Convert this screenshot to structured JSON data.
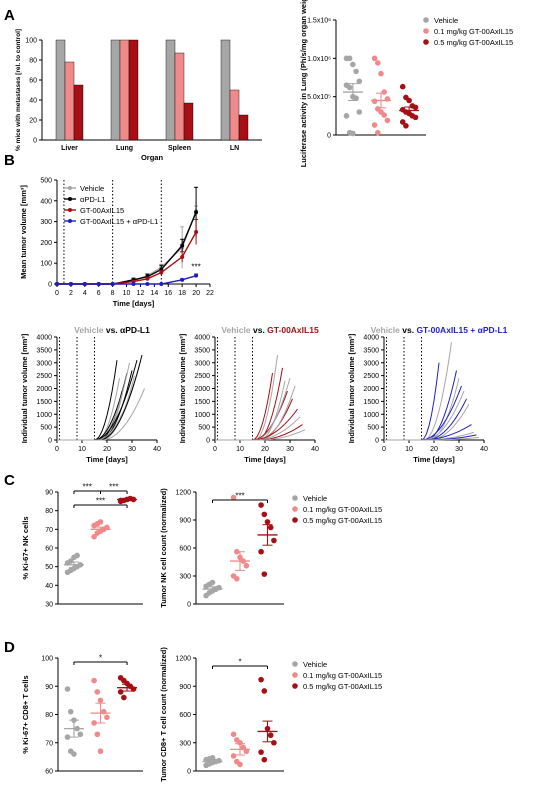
{
  "panels": {
    "A": "A",
    "B": "B",
    "C": "C",
    "D": "D"
  },
  "colors": {
    "vehicle": "#a6a6a6",
    "low": "#f08a8a",
    "high": "#a50f15",
    "black": "#000000",
    "combo": "#1f1fbf",
    "trace": "#1f1fbf"
  },
  "chart_data": [
    {
      "id": "A-bar",
      "type": "bar",
      "ylabel": "% mice with metastases [rel. to control]",
      "xlabel": "Organ",
      "categories": [
        "Liver",
        "Lung",
        "Spleen",
        "LN"
      ],
      "ylim": [
        0,
        100
      ],
      "yticks": [
        0,
        20,
        40,
        60,
        80,
        100
      ],
      "series": [
        {
          "name": "Vehicle",
          "values": [
            100,
            100,
            100,
            100
          ]
        },
        {
          "name": "0.1 mg/kg GT-00AxIL15",
          "values": [
            78,
            100,
            87,
            50
          ]
        },
        {
          "name": "0.5 mg/kg GT-00AxIL15",
          "values": [
            55,
            100,
            37,
            25
          ]
        }
      ]
    },
    {
      "id": "A-scatter",
      "type": "scatter",
      "ylabel": "Luciferase activity in Lung (Ph/s/mg organ weight)",
      "ylim": [
        0,
        1500000
      ],
      "yticks": [
        "0",
        "5.0x10⁵",
        "1.0x10⁶",
        "1.5x10⁶"
      ],
      "legend": [
        "Vehicle",
        "0.1 mg/kg GT-00AxIL15",
        "0.5 mg/kg GT-00AxIL15"
      ],
      "groups": [
        {
          "name": "Vehicle",
          "mean": 560000,
          "sem": 110000,
          "values": [
            1000000,
            1000000,
            920000,
            830000,
            700000,
            650000,
            620000,
            500000,
            480000,
            300000,
            250000,
            30000,
            20000
          ]
        },
        {
          "name": "0.1 mg/kg GT-00AxIL15",
          "mean": 450000,
          "sem": 95000,
          "values": [
            1000000,
            940000,
            800000,
            560000,
            470000,
            440000,
            340000,
            300000,
            260000,
            190000,
            130000,
            30000
          ]
        },
        {
          "name": "0.5 mg/kg GT-00AxIL15",
          "mean": 320000,
          "sem": 45000,
          "values": [
            630000,
            490000,
            450000,
            380000,
            360000,
            330000,
            300000,
            280000,
            250000,
            230000,
            170000,
            120000
          ]
        }
      ]
    },
    {
      "id": "B-mean",
      "type": "line",
      "ylabel": "Mean tumor volume [mm³]",
      "xlabel": "Time [days]",
      "xlim": [
        0,
        22
      ],
      "xticks": [
        0,
        2,
        4,
        6,
        8,
        10,
        12,
        14,
        16,
        18,
        20,
        22
      ],
      "ylim": [
        0,
        500
      ],
      "yticks": [
        0,
        100,
        200,
        300,
        400,
        500
      ],
      "dosing_days": [
        1,
        8,
        15
      ],
      "annotation": "***",
      "series": [
        {
          "name": "Vehicle",
          "x": [
            0,
            2,
            4,
            6,
            8,
            11,
            13,
            15,
            18,
            20
          ],
          "y": [
            0,
            0,
            0,
            0,
            0,
            15,
            40,
            80,
            175,
            350
          ],
          "err": [
            0,
            0,
            0,
            0,
            0,
            5,
            10,
            15,
            100,
            25
          ]
        },
        {
          "name": "αPD-L1",
          "x": [
            0,
            2,
            4,
            6,
            8,
            11,
            13,
            15,
            18,
            20
          ],
          "y": [
            0,
            0,
            0,
            0,
            0,
            20,
            35,
            70,
            185,
            345
          ],
          "err": [
            0,
            0,
            0,
            0,
            0,
            8,
            12,
            20,
            30,
            120
          ]
        },
        {
          "name": "GT-00AxIL15",
          "x": [
            0,
            2,
            4,
            6,
            8,
            11,
            13,
            15,
            18,
            20
          ],
          "y": [
            0,
            0,
            0,
            0,
            0,
            12,
            25,
            55,
            130,
            250
          ],
          "err": [
            0,
            0,
            0,
            0,
            0,
            4,
            8,
            10,
            25,
            60
          ]
        },
        {
          "name": "GT-00AxIL15 + αPD-L1",
          "x": [
            0,
            2,
            4,
            6,
            8,
            11,
            13,
            15,
            18,
            20
          ],
          "y": [
            0,
            0,
            0,
            0,
            0,
            0,
            0,
            0,
            20,
            40
          ],
          "err": [
            0,
            0,
            0,
            0,
            0,
            0,
            0,
            0,
            5,
            8
          ]
        }
      ]
    },
    {
      "id": "B-indiv",
      "type": "line",
      "ylabel": "Individual tumor volume [mm³]",
      "xlabel": "Time [days]",
      "xlim": [
        0,
        40
      ],
      "xticks": [
        0,
        10,
        20,
        30,
        40
      ],
      "ylim": [
        0,
        4000
      ],
      "yticks": [
        0,
        500,
        1000,
        1500,
        2000,
        2500,
        3000,
        3500,
        4000
      ],
      "dosing_days": [
        1,
        8,
        15
      ],
      "panels": [
        {
          "title_a": "Vehicle",
          "title_vs": " vs. ",
          "title_b": "αPD-L1",
          "treat_color": "black",
          "ends": [
            [
              24,
              3100
            ],
            [
              25,
              2400
            ],
            [
              26,
              1900
            ],
            [
              27,
              2200
            ],
            [
              28,
              2600
            ],
            [
              29,
              3000
            ],
            [
              30,
              2700
            ],
            [
              31,
              2500
            ],
            [
              32,
              3100
            ],
            [
              33,
              2900
            ],
            [
              34,
              3300
            ],
            [
              35,
              2000
            ]
          ]
        },
        {
          "title_a": "Vehicle",
          "title_vs": " vs. ",
          "title_b": "GT-00AxIL15",
          "treat_color": "high",
          "ends": [
            [
              23,
              2600
            ],
            [
              25,
              3300
            ],
            [
              27,
              2800
            ],
            [
              28,
              2300
            ],
            [
              29,
              1900
            ],
            [
              30,
              2400
            ],
            [
              31,
              1600
            ],
            [
              32,
              2100
            ],
            [
              33,
              1200
            ],
            [
              34,
              900
            ],
            [
              35,
              600
            ],
            [
              36,
              400
            ]
          ]
        },
        {
          "title_a": "Vehicle",
          "title_vs": " vs. ",
          "title_b": "GT-00AxIL15 + αPD-L1",
          "treat_color": "combo",
          "ends": [
            [
              22,
              3000
            ],
            [
              27,
              3800
            ],
            [
              29,
              2700
            ],
            [
              30,
              2400
            ],
            [
              31,
              2100
            ],
            [
              32,
              1900
            ],
            [
              33,
              1600
            ],
            [
              34,
              1400
            ],
            [
              35,
              600
            ],
            [
              36,
              300
            ],
            [
              37,
              200
            ],
            [
              38,
              100
            ]
          ]
        }
      ]
    },
    {
      "id": "C-ki67",
      "type": "scatter",
      "ylabel": "% Ki-67+ NK cells",
      "ylim": [
        30,
        90
      ],
      "yticks": [
        30,
        40,
        50,
        60,
        70,
        80,
        90
      ],
      "sig": [
        "***",
        "***",
        "***"
      ],
      "groups": [
        {
          "name": "Vehicle",
          "mean": 51,
          "sem": 1.5,
          "values": [
            47,
            48,
            49,
            50,
            51,
            52,
            53,
            55,
            56
          ]
        },
        {
          "name": "0.1 mg/kg GT-00AxIL15",
          "mean": 70,
          "sem": 1.2,
          "values": [
            66,
            68,
            69,
            70,
            71,
            72,
            73,
            74
          ]
        },
        {
          "name": "0.5 mg/kg GT-00AxIL15",
          "mean": 86,
          "sem": 0.4,
          "values": [
            85,
            85.5,
            86,
            86.5,
            86,
            85.5
          ]
        }
      ]
    },
    {
      "id": "C-count",
      "type": "scatter",
      "ylabel": "Tumor NK cell count (normalized)",
      "ylim": [
        0,
        1200
      ],
      "yticks": [
        0,
        300,
        600,
        900,
        1200
      ],
      "sig": "***",
      "legend": [
        "Vehicle",
        "0.1 mg/kg GT-00AxIL15",
        "0.5 mg/kg GT-00AxIL15"
      ],
      "groups": [
        {
          "name": "Vehicle",
          "mean": 160,
          "sem": 25,
          "values": [
            90,
            120,
            140,
            160,
            175,
            190,
            210,
            230
          ]
        },
        {
          "name": "0.1 mg/kg GT-00AxIL15",
          "mean": 460,
          "sem": 100,
          "values": [
            1140,
            560,
            500,
            460,
            410,
            300,
            270
          ]
        },
        {
          "name": "0.5 mg/kg GT-00AxIL15",
          "mean": 740,
          "sem": 110,
          "values": [
            1060,
            960,
            880,
            820,
            680,
            560,
            320
          ]
        }
      ]
    },
    {
      "id": "D-ki67",
      "type": "scatter",
      "ylabel": "% Ki-67+ CD8+ T cells",
      "ylim": [
        60,
        100
      ],
      "yticks": [
        60,
        70,
        80,
        90,
        100
      ],
      "sig": "*",
      "groups": [
        {
          "name": "Vehicle",
          "mean": 75,
          "sem": 3,
          "values": [
            89,
            81,
            78,
            75,
            73,
            72,
            67,
            66
          ]
        },
        {
          "name": "0.1 mg/kg GT-00AxIL15",
          "mean": 80.5,
          "sem": 3.5,
          "values": [
            92,
            88,
            85,
            81,
            79,
            77,
            73,
            67
          ]
        },
        {
          "name": "0.5 mg/kg GT-00AxIL15",
          "mean": 89.5,
          "sem": 1.2,
          "values": [
            93,
            92,
            91,
            90,
            89,
            88,
            86
          ]
        }
      ]
    },
    {
      "id": "D-count",
      "type": "scatter",
      "ylabel": "Tumor CD8+ T cell count (normalized)",
      "ylim": [
        0,
        1200
      ],
      "yticks": [
        0,
        300,
        600,
        900,
        1200
      ],
      "sig": "*",
      "legend": [
        "Vehicle",
        "0.1 mg/kg GT-00AxIL15",
        "0.5 mg/kg GT-00AxIL15"
      ],
      "groups": [
        {
          "name": "Vehicle",
          "mean": 100,
          "sem": 15,
          "values": [
            60,
            75,
            90,
            100,
            110,
            120,
            130,
            140
          ]
        },
        {
          "name": "0.1 mg/kg GT-00AxIL15",
          "mean": 230,
          "sem": 60,
          "values": [
            390,
            330,
            300,
            250,
            210,
            160,
            100,
            70
          ]
        },
        {
          "name": "0.5 mg/kg GT-00AxIL15",
          "mean": 420,
          "sem": 110,
          "values": [
            970,
            850,
            450,
            380,
            300,
            200,
            120
          ]
        }
      ]
    }
  ]
}
